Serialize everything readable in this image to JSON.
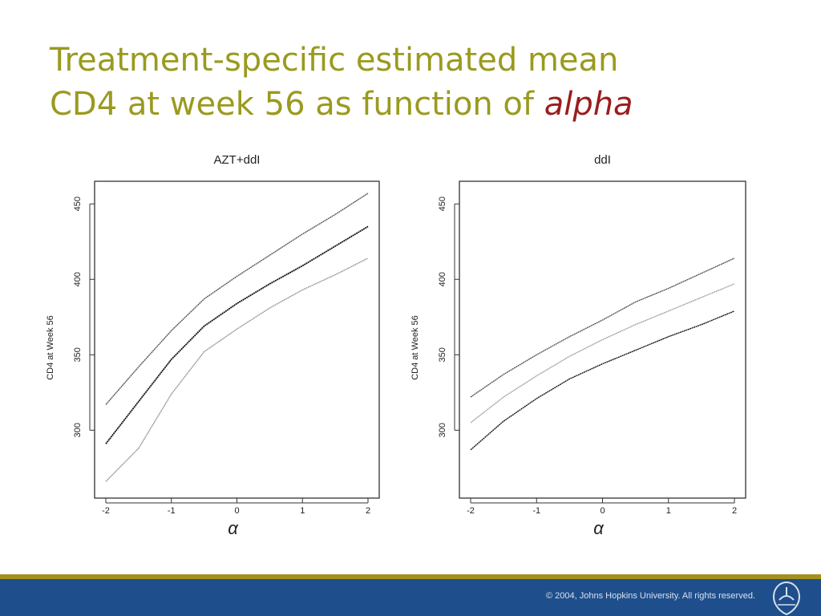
{
  "slide": {
    "title_part1": "Treatment-specific estimated mean",
    "title_part2": "CD4 at week 56 as function of ",
    "title_italic": "alpha",
    "footer": "© 2004, Johns Hopkins University. All rights reserved."
  },
  "colors": {
    "title": "#9a9a1f",
    "title_italic": "#9b1c1c",
    "footer_band": "#1f4e8c",
    "footer_rule": "#a3901f"
  },
  "chart_data": [
    {
      "type": "line",
      "title": "AZT+ddI",
      "xlabel": "α",
      "ylabel": "CD4 at Week 56",
      "xlim": [
        -2,
        2
      ],
      "ylim": [
        255,
        465
      ],
      "xticks": [
        -2,
        -1,
        0,
        1,
        2
      ],
      "yticks": [
        300,
        350,
        400,
        450
      ],
      "x": [
        -2,
        -1.5,
        -1,
        -0.5,
        0,
        0.5,
        1,
        1.5,
        2
      ],
      "series": [
        {
          "values": [
            317,
            342,
            366,
            387,
            402,
            416,
            430,
            443,
            457
          ],
          "color": "#555555"
        },
        {
          "values": [
            291,
            319,
            347,
            369,
            384,
            397,
            409,
            422,
            435
          ],
          "color": "#111111"
        },
        {
          "values": [
            266,
            288,
            324,
            352,
            367,
            381,
            393,
            403,
            414
          ],
          "color": "#9a9a9a"
        }
      ],
      "grid": false
    },
    {
      "type": "line",
      "title": "ddI",
      "xlabel": "α",
      "ylabel": "CD4 at Week 56",
      "xlim": [
        -2,
        2
      ],
      "ylim": [
        255,
        465
      ],
      "xticks": [
        -2,
        -1,
        0,
        1,
        2
      ],
      "yticks": [
        300,
        350,
        400,
        450
      ],
      "x": [
        -2,
        -1.5,
        -1,
        -0.5,
        0,
        0.5,
        1,
        1.5,
        2
      ],
      "series": [
        {
          "values": [
            322,
            337,
            350,
            362,
            373,
            385,
            394,
            404,
            414
          ],
          "color": "#555555"
        },
        {
          "values": [
            305,
            322,
            336,
            349,
            360,
            370,
            379,
            388,
            397
          ],
          "color": "#a5a5a5"
        },
        {
          "values": [
            287,
            306,
            321,
            334,
            344,
            353,
            362,
            370,
            379
          ],
          "color": "#111111"
        }
      ],
      "grid": false
    }
  ]
}
